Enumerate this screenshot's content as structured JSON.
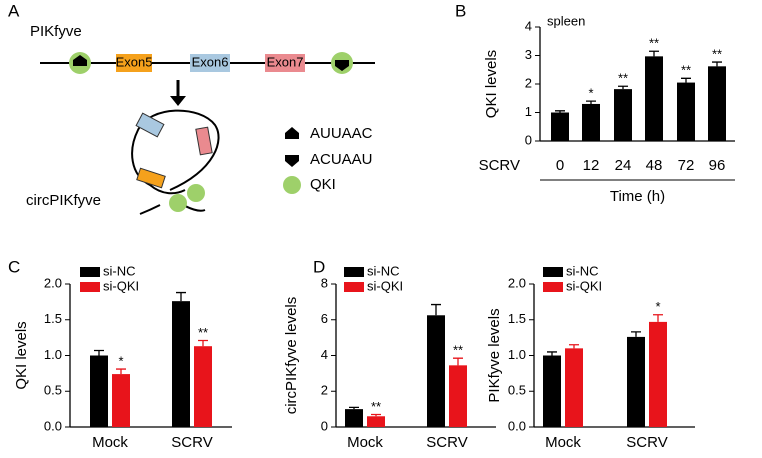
{
  "diagram": {
    "panel_label": "A",
    "gene": "PIKfyve",
    "exons": [
      "Exon5",
      "Exon6",
      "Exon7"
    ],
    "circ": "circPIKfyve",
    "legend": [
      "AUUAAC",
      "ACUAAU",
      "QKI"
    ]
  },
  "chart_data": [
    {
      "type": "bar",
      "panel_label": "B",
      "annotation": "spleen",
      "ylabel": "QKI levels",
      "xlabel": "Time (h)",
      "row_label": "SCRV",
      "categories": [
        "0",
        "12",
        "24",
        "48",
        "72",
        "96"
      ],
      "ylim": [
        0,
        4
      ],
      "yticks": [
        0,
        1,
        2,
        3,
        4
      ],
      "series": [
        {
          "color": "#000000",
          "values": [
            1.0,
            1.3,
            1.82,
            2.97,
            2.05,
            2.62
          ],
          "errors": [
            0.06,
            0.1,
            0.1,
            0.18,
            0.15,
            0.15
          ],
          "annotations": [
            null,
            "*",
            "**",
            "**",
            "**",
            "**"
          ]
        }
      ]
    },
    {
      "type": "bar",
      "panel_label": "C",
      "ylabel": "QKI levels",
      "categories": [
        "Mock",
        "SCRV"
      ],
      "ylim": [
        0,
        2.0
      ],
      "yticks": [
        {
          "value": 0,
          "label": "0.0"
        },
        {
          "value": 0.5,
          "label": "0.5"
        },
        {
          "value": 1,
          "label": "1.0"
        },
        {
          "value": 1.5,
          "label": "1.5"
        },
        {
          "value": 2,
          "label": "2.0"
        }
      ],
      "series": [
        {
          "name": "si-NC",
          "color": "#000000",
          "values": [
            1.0,
            1.76
          ],
          "errors": [
            0.07,
            0.12
          ],
          "annotations": [
            null,
            null
          ]
        },
        {
          "name": "si-QKI",
          "color": "#e8141b",
          "values": [
            0.74,
            1.13
          ],
          "errors": [
            0.07,
            0.08
          ],
          "annotations": [
            "*",
            "**"
          ]
        }
      ]
    },
    {
      "type": "bar",
      "panel_label": "D",
      "ylabel": "circPIKfyve levels",
      "categories": [
        "Mock",
        "SCRV"
      ],
      "ylim": [
        0,
        8
      ],
      "yticks": [
        0,
        2,
        4,
        6,
        8
      ],
      "series": [
        {
          "name": "si-NC",
          "color": "#000000",
          "values": [
            1.0,
            6.25
          ],
          "errors": [
            0.1,
            0.6
          ],
          "annotations": [
            null,
            null
          ]
        },
        {
          "name": "si-QKI",
          "color": "#e8141b",
          "values": [
            0.6,
            3.45
          ],
          "errors": [
            0.1,
            0.4
          ],
          "annotations": [
            "**",
            "**"
          ]
        }
      ]
    },
    {
      "type": "bar",
      "ylabel": "PIKfyve levels",
      "categories": [
        "Mock",
        "SCRV"
      ],
      "ylim": [
        0,
        2.0
      ],
      "yticks": [
        {
          "value": 0,
          "label": "0.0"
        },
        {
          "value": 0.5,
          "label": "0.5"
        },
        {
          "value": 1,
          "label": "1.0"
        },
        {
          "value": 1.5,
          "label": "1.5"
        },
        {
          "value": 2,
          "label": "2.0"
        }
      ],
      "series": [
        {
          "name": "si-NC",
          "color": "#000000",
          "values": [
            1.0,
            1.26
          ],
          "errors": [
            0.05,
            0.07
          ],
          "annotations": [
            null,
            null
          ]
        },
        {
          "name": "si-QKI",
          "color": "#e8141b",
          "values": [
            1.1,
            1.47
          ],
          "errors": [
            0.05,
            0.1
          ],
          "annotations": [
            null,
            "*"
          ]
        }
      ]
    }
  ]
}
